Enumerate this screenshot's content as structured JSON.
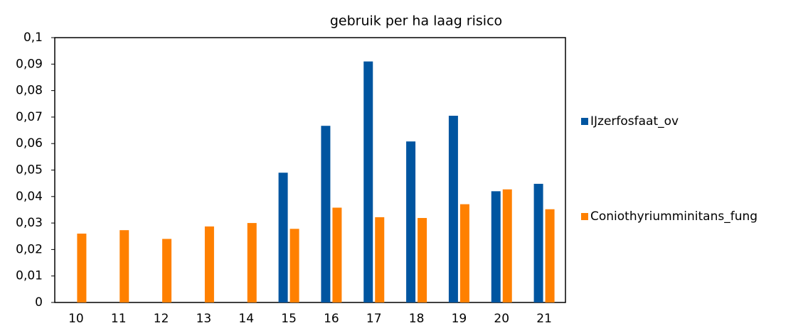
{
  "chart_data": {
    "type": "bar",
    "title": "gebruik per ha laag risico",
    "categories": [
      "10",
      "11",
      "12",
      "13",
      "14",
      "15",
      "16",
      "17",
      "18",
      "19",
      "20",
      "21"
    ],
    "series": [
      {
        "name": "IJzerfosfaat_ov",
        "color": "#0055a0",
        "values": [
          null,
          null,
          null,
          null,
          null,
          0.049,
          0.0667,
          0.091,
          0.0608,
          0.0705,
          0.042,
          0.0448
        ]
      },
      {
        "name": "Coniothyriumminitans_fung",
        "color": "#ff8000",
        "values": [
          0.026,
          0.0273,
          0.024,
          0.0287,
          0.03,
          0.0278,
          0.0358,
          0.0322,
          0.0319,
          0.0371,
          0.0427,
          0.0352
        ]
      }
    ],
    "ylim": [
      0,
      0.1
    ],
    "yticks": [
      0,
      {
        "value": 0.01,
        "label": "0,01"
      },
      {
        "value": 0.02,
        "label": "0,02"
      },
      {
        "value": 0.03,
        "label": "0,03"
      },
      {
        "value": 0.04,
        "label": "0,04"
      },
      {
        "value": 0.05,
        "label": "0,05"
      },
      {
        "value": 0.06,
        "label": "0,06"
      },
      {
        "value": 0.07,
        "label": "0,07"
      },
      {
        "value": 0.08,
        "label": "0,08"
      },
      {
        "value": 0.09,
        "label": "0,09"
      },
      {
        "value": 0.1,
        "label": "0,1"
      }
    ],
    "grid": false,
    "legend": "right"
  }
}
